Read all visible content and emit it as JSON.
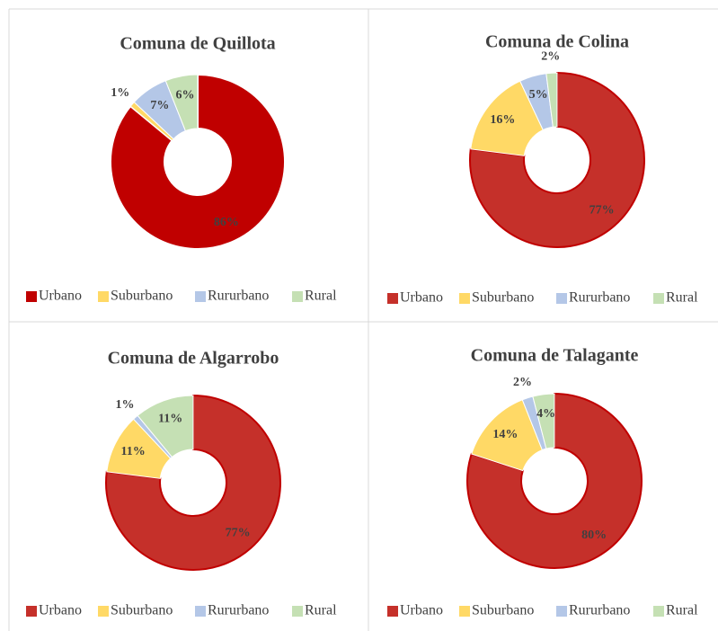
{
  "chart_data": [
    {
      "type": "donut",
      "title": "Comuna de Quillota",
      "categories": [
        "Urbano",
        "Suburbano",
        "Rururbano",
        "Rural"
      ],
      "values": [
        86,
        1,
        7,
        6
      ],
      "value_labels": [
        "86%",
        "1%",
        "7%",
        "6%"
      ],
      "colors": [
        "#c00000",
        "#ffd966",
        "#b4c7e7",
        "#c5e0b4"
      ],
      "edgecolor": "#ffffff"
    },
    {
      "type": "donut",
      "title": "Comuna de Colina",
      "categories": [
        "Urbano",
        "Suburbano",
        "Rururbano",
        "Rural"
      ],
      "values": [
        77,
        16,
        5,
        2
      ],
      "value_labels": [
        "77%",
        "16%",
        "5%",
        "2%"
      ],
      "colors": [
        "#c5302a",
        "#ffd966",
        "#b4c7e7",
        "#c5e0b4"
      ],
      "edgecolor": "#c00000"
    },
    {
      "type": "donut",
      "title": "Comuna de Algarrobo",
      "categories": [
        "Urbano",
        "Suburbano",
        "Rururbano",
        "Rural"
      ],
      "values": [
        77,
        11,
        1,
        11
      ],
      "value_labels": [
        "77%",
        "11%",
        "1%",
        "11%"
      ],
      "colors": [
        "#c5302a",
        "#ffd966",
        "#b4c7e7",
        "#c5e0b4"
      ],
      "edgecolor": "#c00000"
    },
    {
      "type": "donut",
      "title": "Comuna de Talagante",
      "categories": [
        "Urbano",
        "Suburbano",
        "Rururbano",
        "Rural"
      ],
      "values": [
        80,
        14,
        2,
        4
      ],
      "value_labels": [
        "80%",
        "14%",
        "2%",
        "4%"
      ],
      "colors": [
        "#c5302a",
        "#ffd966",
        "#b4c7e7",
        "#c5e0b4"
      ],
      "edgecolor": "#c00000"
    }
  ]
}
